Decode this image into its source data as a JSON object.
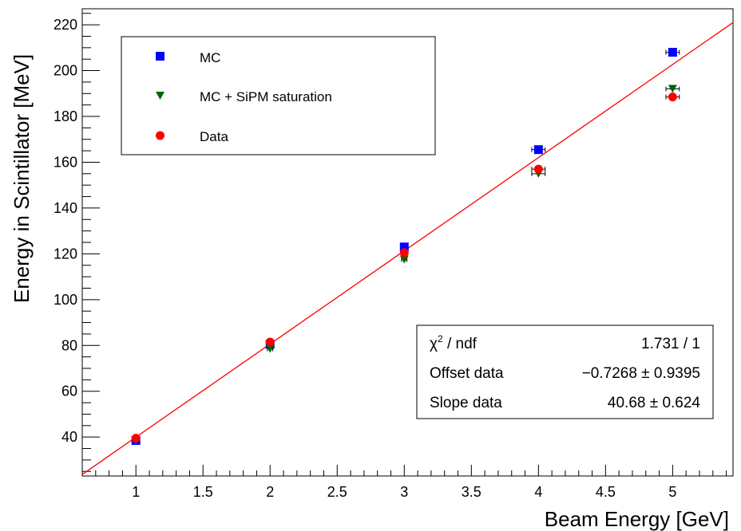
{
  "chart_data": {
    "type": "scatter",
    "xlabel": "Beam Energy [GeV]",
    "ylabel": "Energy in Scintillator [MeV]",
    "xlim": [
      0.6,
      5.45
    ],
    "ylim": [
      23,
      227
    ],
    "x_ticks": [
      "1",
      "1.5",
      "2",
      "2.5",
      "3",
      "3.5",
      "4",
      "4.5",
      "5"
    ],
    "y_ticks": [
      "40",
      "60",
      "80",
      "100",
      "120",
      "140",
      "160",
      "180",
      "200",
      "220"
    ],
    "grid": false,
    "legend_position": "top-left",
    "series": [
      {
        "name": "MC",
        "marker": "square",
        "color": "#0000ff",
        "x": [
          1,
          2,
          3,
          4,
          5
        ],
        "y": [
          38.5,
          80.5,
          123.0,
          165.5,
          208.0
        ],
        "xerr": [
          0.02,
          0.02,
          0.02,
          0.05,
          0.05
        ]
      },
      {
        "name": "MC + SiPM saturation",
        "marker": "triangle-down",
        "color": "#006400",
        "x": [
          1,
          2,
          3,
          4,
          5
        ],
        "y": [
          38.5,
          78.5,
          117.5,
          155.0,
          192.0
        ],
        "xerr": [
          0.02,
          0.02,
          0.02,
          0.05,
          0.05
        ]
      },
      {
        "name": "Data",
        "marker": "circle",
        "color": "#ff0000",
        "x": [
          1,
          2,
          3,
          4,
          5
        ],
        "y": [
          39.5,
          81.5,
          120.5,
          157.0,
          188.5
        ],
        "xerr": [
          0.02,
          0.02,
          0.02,
          0.05,
          0.05
        ]
      }
    ],
    "fit": {
      "color": "#ff0000",
      "offset": -0.7268,
      "slope": 40.68
    },
    "stats_box": {
      "rows": [
        {
          "label_pre": "χ",
          "label_sup": "2",
          "label_post": " / ndf",
          "value": "1.731 / 1"
        },
        {
          "label_pre": "Offset data",
          "label_sup": "",
          "label_post": "",
          "value": "−0.7268 ± 0.9395"
        },
        {
          "label_pre": "Slope data",
          "label_sup": "",
          "label_post": "",
          "value": "40.68 ± 0.624"
        }
      ]
    }
  }
}
